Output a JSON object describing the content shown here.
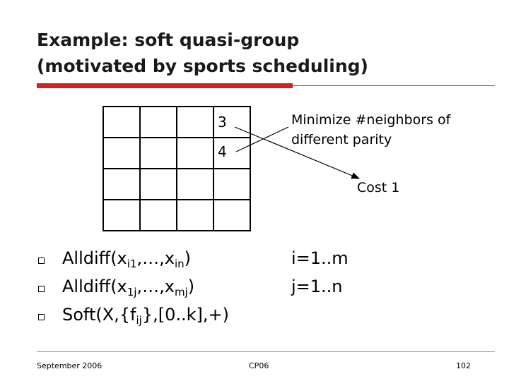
{
  "slide": {
    "title_line1": "Example: soft quasi-group",
    "title_line2": "(motivated by sports scheduling)",
    "grid_values": [
      "3",
      "4"
    ],
    "callout_line1": "Minimize #neighbors of",
    "callout_line2": "different parity",
    "cost_label": "Cost 1",
    "bullets": [
      {
        "pre": "Alldiff(x",
        "sub1": "i1",
        "mid": ",…,x",
        "sub2": "in",
        "post": ")"
      },
      {
        "pre": "Alldiff(x",
        "sub1": "1j",
        "mid": ",…,x",
        "sub2": "mj",
        "post": ")"
      },
      {
        "pre": "Soft(X,{f",
        "sub1": "ij",
        "mid": "},[0..k],+)",
        "sub2": "",
        "post": ""
      }
    ],
    "range_i": "i=1..m",
    "range_j": "j=1..n"
  },
  "footer": {
    "date": "September 2006",
    "venue": "CP06",
    "page": "102"
  },
  "colors": {
    "accent": "#d42027",
    "text": "#000000"
  }
}
